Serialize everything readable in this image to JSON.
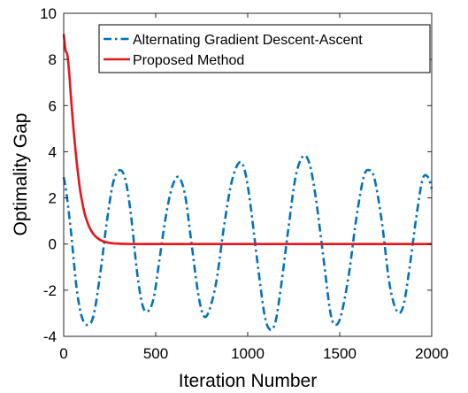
{
  "chart_data": {
    "type": "line",
    "xlabel": "Iteration Number",
    "ylabel": "Optimality Gap",
    "xlim": [
      0,
      2000
    ],
    "ylim": [
      -4,
      10
    ],
    "xticks": [
      0,
      500,
      1000,
      1500,
      2000
    ],
    "yticks": [
      -4,
      -2,
      0,
      2,
      4,
      6,
      8,
      10
    ],
    "grid": false,
    "legend_position": "top-right",
    "series": [
      {
        "name": "Alternating Gradient Descent-Ascent",
        "color": "#0072BD",
        "style": "dash-dot",
        "x": [
          0,
          15,
          40,
          70,
          100,
          135,
          165,
          200,
          235,
          270,
          305,
          335,
          365,
          400,
          430,
          460,
          490,
          520,
          555,
          590,
          625,
          660,
          695,
          730,
          760,
          790,
          830,
          870,
          910,
          950,
          980,
          1010,
          1050,
          1090,
          1120,
          1150,
          1180,
          1220,
          1260,
          1300,
          1335,
          1370,
          1410,
          1450,
          1480,
          1510,
          1550,
          1590,
          1630,
          1660,
          1690,
          1730,
          1770,
          1810,
          1845,
          1880,
          1915,
          1950,
          1980,
          2000
        ],
        "y": [
          2.9,
          2.2,
          0.5,
          -1.9,
          -3.2,
          -3.5,
          -3.0,
          -1.2,
          1.0,
          2.7,
          3.2,
          2.8,
          1.3,
          -1.3,
          -2.7,
          -2.9,
          -2.3,
          -0.7,
          1.2,
          2.5,
          2.9,
          2.1,
          0.0,
          -2.1,
          -3.1,
          -2.9,
          -1.6,
          0.7,
          2.6,
          3.5,
          3.3,
          2.0,
          -0.6,
          -3.0,
          -3.7,
          -3.4,
          -1.9,
          0.6,
          2.9,
          3.8,
          3.5,
          2.0,
          -0.5,
          -3.0,
          -3.5,
          -3.0,
          -1.3,
          1.1,
          2.9,
          3.2,
          2.8,
          0.9,
          -1.7,
          -2.9,
          -2.7,
          -1.0,
          1.1,
          2.8,
          2.9,
          2.4
        ]
      },
      {
        "name": "Proposed Method",
        "color": "#E8141B",
        "style": "solid",
        "x": [
          0,
          10,
          20,
          30,
          40,
          50,
          60,
          70,
          80,
          90,
          100,
          110,
          120,
          140,
          160,
          180,
          200,
          230,
          260,
          300,
          350,
          400,
          500,
          700,
          1000,
          1500,
          2000
        ],
        "y": [
          9.1,
          8.4,
          8.2,
          7.4,
          6.3,
          5.3,
          4.4,
          3.6,
          2.9,
          2.3,
          1.85,
          1.45,
          1.15,
          0.72,
          0.45,
          0.28,
          0.17,
          0.08,
          0.04,
          0.015,
          0.005,
          0.0,
          0.0,
          0.0,
          0.0,
          0.0,
          0.0
        ]
      }
    ]
  }
}
